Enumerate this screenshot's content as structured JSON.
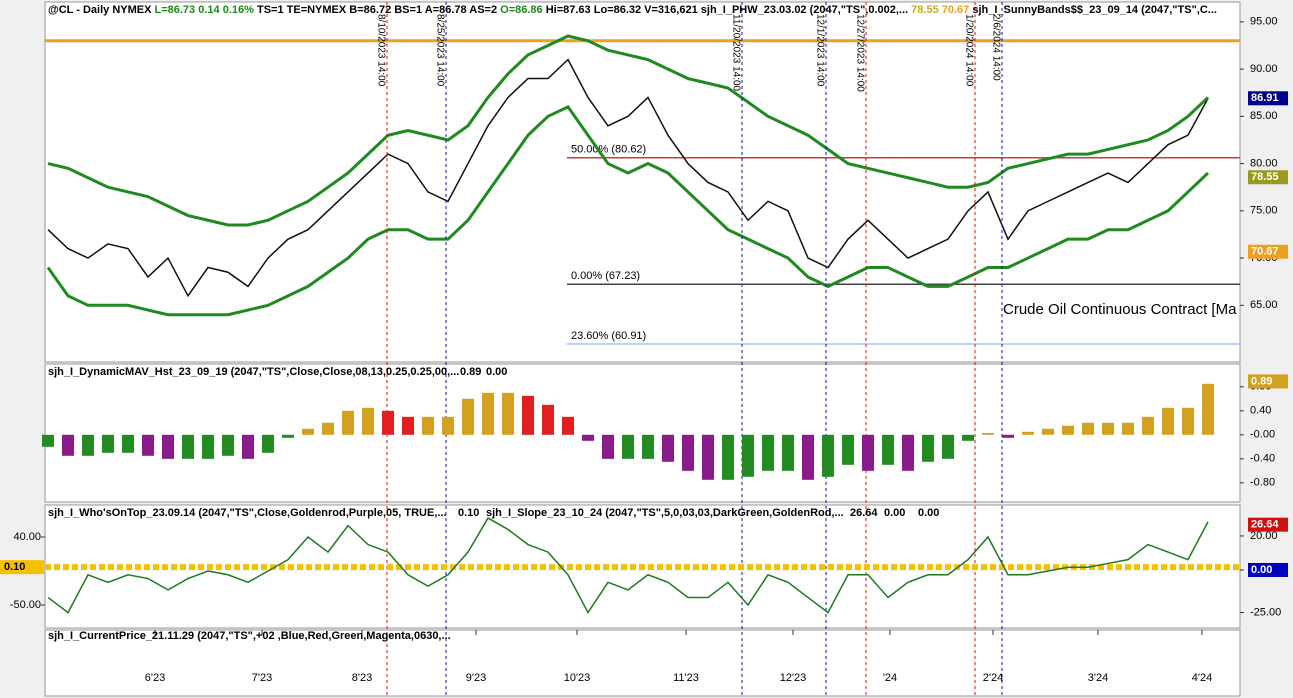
{
  "header": {
    "symbol": "@CL - Daily  NYMEX",
    "last": "L=86.73",
    "change": "0.14",
    "pct": "0.16%",
    "quote": "TS=1  TE=NYMEX  B=86.72  BS=1  A=86.78  AS=2",
    "open": "O=86.86",
    "range": "Hi=87.63  Lo=86.32  V=316,621",
    "study1": "sjh_I_PHW_23.03.02 (2047,\"TS\",0.002,...",
    "study1_v1": "78.55",
    "study1_v2": "70.67",
    "study2": "sjh_I_SunnyBands$$_23_09_14 (2047,\"TS\",C..."
  },
  "chart_data": [
    {
      "type": "line",
      "note": "Crude Oil Continuous Contract [Ma",
      "ylim": [
        59,
        97.1
      ],
      "yticks": [
        {
          "value": 65,
          "label": "65.00"
        },
        {
          "value": 70,
          "label": "70.00"
        },
        {
          "value": 75,
          "label": "75.00"
        },
        {
          "value": 80,
          "label": "80.00"
        },
        {
          "value": 85,
          "label": "85.00"
        },
        {
          "value": 90,
          "label": "90.00"
        },
        {
          "value": 95,
          "label": "95.00"
        }
      ],
      "series": [
        {
          "color": "#111111",
          "values": [
            73,
            71,
            70,
            71.5,
            71,
            68,
            70,
            66,
            69,
            68.5,
            67,
            70,
            72,
            73,
            75,
            77,
            79,
            81,
            80,
            77,
            76,
            80,
            84,
            87,
            89,
            89,
            91,
            87,
            84,
            85,
            87,
            83,
            80,
            78,
            77,
            74,
            76,
            75,
            70,
            69,
            72,
            74,
            72,
            70,
            71,
            72,
            75,
            77,
            72,
            75,
            76,
            77,
            78,
            79,
            78,
            80,
            82,
            83,
            86.9
          ]
        },
        {
          "color": "#1f8a1f",
          "values": [
            80,
            79.5,
            78.5,
            77.5,
            77,
            76.5,
            75.5,
            74.5,
            74,
            73.5,
            73.5,
            74,
            75,
            76,
            77.5,
            79,
            81,
            83,
            83.5,
            83,
            82.5,
            84,
            87,
            89.5,
            91.5,
            92.5,
            93.5,
            93,
            92,
            91.5,
            91,
            90,
            89,
            88.5,
            88,
            86.5,
            85,
            84,
            83,
            81.5,
            80,
            79.5,
            79,
            78.5,
            78,
            77.5,
            77.5,
            78,
            79.5,
            80,
            80.5,
            81,
            81,
            81.5,
            82,
            82.5,
            83.5,
            85,
            87
          ]
        },
        {
          "color": "#1f8a1f",
          "values": [
            69,
            66,
            65,
            65,
            65,
            64.5,
            64,
            64,
            64,
            64,
            64.5,
            65,
            66,
            67,
            68.5,
            70,
            72,
            73,
            73,
            72,
            72,
            74,
            77,
            80,
            83,
            85,
            86,
            83,
            80,
            79,
            80,
            79,
            77,
            75,
            73,
            72,
            71,
            70,
            68,
            67,
            68,
            69,
            69,
            68,
            67,
            67,
            68,
            69,
            69,
            70,
            71,
            72,
            72,
            73,
            73,
            74,
            75,
            77,
            79
          ]
        }
      ],
      "hlines": [
        {
          "value": 93.0,
          "color": "#f0a020"
        },
        {
          "value": 80.62,
          "color": "#c04040",
          "from": 25.95,
          "label": "50.00% (80.62)"
        },
        {
          "value": 67.23,
          "color": "#444444",
          "from": 25.95,
          "label": "0.00% (67.23)"
        },
        {
          "value": 60.91,
          "color": "#9cc8f0",
          "from": 25.95,
          "label": "23.60% (60.91)"
        }
      ],
      "vlines": [
        {
          "value": 16.95,
          "color": "#d01010",
          "label": "8/10/2023 14:00"
        },
        {
          "value": 19.9,
          "color": "#1010a0",
          "label": "8/25/2023 14:00"
        },
        {
          "value": 34.7,
          "color": "#1010a0",
          "label": "11/20/2023 14:00"
        },
        {
          "value": 38.9,
          "color": "#1010a0",
          "label": "12/1/2023 14:00"
        },
        {
          "value": 40.9,
          "color": "#d01010",
          "label": "12/27/2023 14:00"
        },
        {
          "value": 46.35,
          "color": "#d01010",
          "label": "1/20/2024 14:00"
        },
        {
          "value": 47.7,
          "color": "#1010a0",
          "label": "2/6/2024 14:00"
        }
      ],
      "tags": [
        {
          "value": 86.91,
          "label": "86.91",
          "color": "#00008b"
        },
        {
          "value": 78.55,
          "label": "78.55",
          "color": "#9a9a20"
        },
        {
          "value": 70.67,
          "label": "70.67",
          "color": "#f0a020"
        }
      ]
    },
    {
      "type": "bar",
      "title": "sjh_I_DynamicMAV_Hst_23_09_19 (2047,\"TS\",Close,Close,08,13,0.25,0.25,00,...",
      "readouts": [
        {
          "label": "0.89",
          "color": "#d4a020"
        },
        {
          "label": "0.00",
          "color": "#888888"
        }
      ],
      "ylim": [
        -1.12,
        1.18
      ],
      "yticks": [
        {
          "value": -0.8,
          "label": "-0.80"
        },
        {
          "value": -0.4,
          "label": "-0.40"
        },
        {
          "value": 0,
          "label": "-0.00"
        },
        {
          "value": 0.4,
          "label": "0.40"
        },
        {
          "value": 0.8,
          "label": "0.80"
        }
      ],
      "palette": {
        "pos_up": "#d4a020",
        "pos_down": "#e02020",
        "neg_up": "#228b22",
        "neg_down": "#8b1a8b"
      },
      "values": [
        -0.2,
        -0.35,
        -0.35,
        -0.3,
        -0.3,
        -0.35,
        -0.4,
        -0.4,
        -0.4,
        -0.35,
        -0.4,
        -0.3,
        -0.05,
        0.1,
        0.2,
        0.4,
        0.45,
        0.4,
        0.3,
        0.3,
        0.3,
        0.6,
        0.7,
        0.7,
        0.65,
        0.5,
        0.3,
        -0.1,
        -0.4,
        -0.4,
        -0.4,
        -0.45,
        -0.6,
        -0.75,
        -0.75,
        -0.7,
        -0.6,
        -0.6,
        -0.75,
        -0.7,
        -0.5,
        -0.6,
        -0.5,
        -0.6,
        -0.45,
        -0.4,
        -0.1,
        0.03,
        -0.05,
        0.05,
        0.1,
        0.15,
        0.2,
        0.2,
        0.2,
        0.3,
        0.45,
        0.45,
        0.85
      ],
      "tags": [
        {
          "value": 0.89,
          "label": "0.89",
          "color": "#d4a020"
        }
      ]
    },
    {
      "type": "line",
      "title": "sjh_I_Who'sOnTop_23.09.14 (2047,\"TS\",Close,Goldenrod,Purple,05,  TRUE,...",
      "title_readout": "0.10",
      "title2": "sjh_I_Slope_23_10_24 (2047,\"TS\",5,0,03,03,DarkGreen,GoldenRod,...",
      "readouts2": [
        {
          "label": "26.64",
          "color": "#d01010"
        },
        {
          "label": "0.00",
          "color": "#0000c0"
        },
        {
          "label": "0.00",
          "color": "#e0c000"
        }
      ],
      "footer": "sjh_I_CurrentPrice_21.11.29 (2047,\"TS\",+02 ,Blue,Red,Green,Magenta,0630,...",
      "ylim": [
        -80.4,
        82.3
      ],
      "yticks": [
        {
          "value": 40,
          "label": "40.00"
        },
        {
          "value": -50,
          "label": "-50.00"
        }
      ],
      "y2lim": [
        -34.1,
        38.2
      ],
      "y2ticks": [
        {
          "value": 20,
          "label": "20.00"
        },
        {
          "value": 0,
          "label": "0.00"
        },
        {
          "value": -25,
          "label": "-25.00"
        }
      ],
      "xlim": [
        -0.15,
        59.6
      ],
      "xticks": [
        {
          "value": 5.35,
          "label": "6'23"
        },
        {
          "value": 10.7,
          "label": "7'23"
        },
        {
          "value": 15.7,
          "label": "8'23"
        },
        {
          "value": 21.4,
          "label": "9'23"
        },
        {
          "value": 26.45,
          "label": "10'23"
        },
        {
          "value": 31.9,
          "label": "11'23"
        },
        {
          "value": 37.25,
          "label": "12'23"
        },
        {
          "value": 42.1,
          "label": "'24"
        },
        {
          "value": 47.25,
          "label": "2'24"
        },
        {
          "value": 52.5,
          "label": "3'24"
        },
        {
          "value": 57.7,
          "label": "4'24"
        }
      ],
      "hlines": [
        {
          "value": 0.1,
          "color": "#f5c000",
          "label": "0.10"
        }
      ],
      "series": [
        {
          "color": "#1f7a1f",
          "values": [
            -40,
            -60,
            -10,
            -20,
            -10,
            -15,
            -30,
            -15,
            -5,
            -10,
            -20,
            -5,
            10,
            40,
            20,
            55,
            30,
            20,
            -10,
            -25,
            -10,
            20,
            65,
            50,
            30,
            20,
            -10,
            -60,
            -20,
            -30,
            -10,
            -20,
            -40,
            -40,
            -20,
            -50,
            -10,
            -20,
            -40,
            -60,
            -10,
            -10,
            -40,
            -20,
            -10,
            -10,
            10,
            40,
            -10,
            -10,
            -5,
            0,
            0,
            5,
            10,
            30,
            20,
            10,
            60
          ]
        }
      ],
      "tags": [
        {
          "value": 26.64,
          "label": "26.64",
          "color": "#d01010",
          "axis": "y2"
        },
        {
          "value": 0,
          "label": "0.00",
          "color": "#0000c0",
          "axis": "y2"
        }
      ]
    }
  ]
}
